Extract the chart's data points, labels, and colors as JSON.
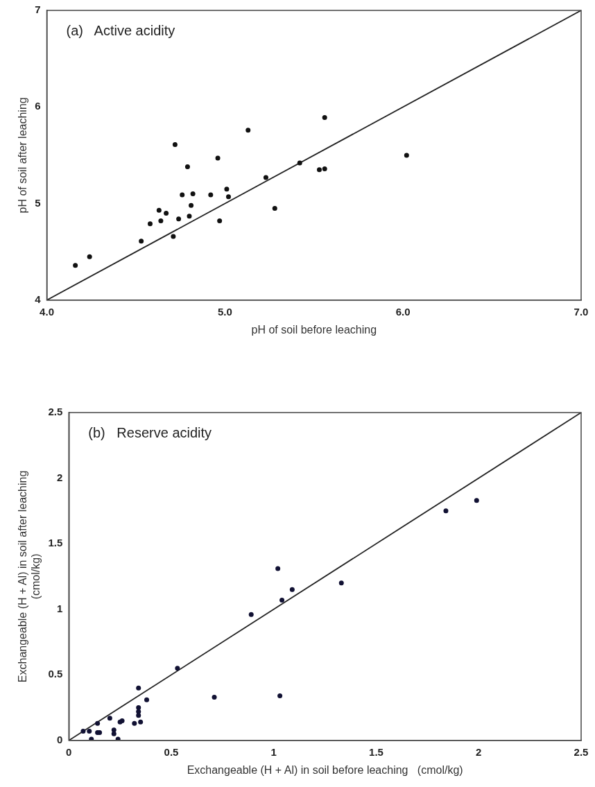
{
  "chart_data": [
    {
      "type": "scatter",
      "annotations": [
        "(a)   Active acidity"
      ],
      "xlabel": "pH of soil before leaching",
      "ylabel": "pH of soil after leaching",
      "marker": "circle",
      "grid": false,
      "xlim": [
        4,
        7
      ],
      "ylim": [
        4,
        7
      ],
      "xticks": [
        {
          "value": 4,
          "label": "4.0"
        },
        {
          "value": 5,
          "label": "5.0"
        },
        {
          "value": 6,
          "label": "6.0"
        },
        {
          "value": 7,
          "label": "7.0"
        }
      ],
      "yticks": [
        4,
        5,
        6,
        7
      ],
      "series": [
        {
          "color": "#111111",
          "x": [
            4.16,
            4.24,
            4.53,
            4.58,
            4.64,
            4.63,
            4.67,
            4.71,
            4.72,
            4.74,
            4.76,
            4.79,
            4.8,
            4.81,
            4.82,
            4.92,
            4.96,
            4.97,
            5.01,
            5.02,
            5.13,
            5.23,
            5.28,
            5.42,
            5.53,
            5.56,
            5.56,
            6.02
          ],
          "values": [
            4.36,
            4.45,
            4.61,
            4.79,
            4.82,
            4.93,
            4.9,
            4.66,
            5.61,
            4.84,
            5.09,
            5.38,
            4.87,
            4.98,
            5.1,
            5.09,
            5.47,
            4.82,
            5.15,
            5.07,
            5.76,
            5.27,
            4.95,
            5.42,
            5.35,
            5.36,
            5.89,
            5.5
          ]
        },
        {
          "type": "line",
          "color": "#222222",
          "marker": "none",
          "x": [
            4,
            7
          ],
          "values": [
            4,
            7
          ]
        }
      ]
    },
    {
      "type": "scatter",
      "annotations": [
        "(b)   Reserve acidity"
      ],
      "xlabel": "Exchangeable (H + Al) in soil before leaching   (cmol/kg)",
      "ylabel": "Exchangeable (H + Al) in soil after leaching\n(cmol/kg)",
      "marker": "circle",
      "grid": false,
      "xlim": [
        0,
        2.5
      ],
      "ylim": [
        0,
        2.5
      ],
      "xticks": [
        0,
        0.5,
        1,
        1.5,
        2,
        2.5
      ],
      "yticks": [
        0,
        0.5,
        1,
        1.5,
        2,
        2.5
      ],
      "series": [
        {
          "color": "#111133",
          "x": [
            1.99,
            1.84,
            1.02,
            1.09,
            1.33,
            1.04,
            0.89,
            0.53,
            0.71,
            1.03,
            0.34,
            0.38,
            0.34,
            0.34,
            0.34,
            0.35,
            0.32,
            0.2,
            0.14,
            0.07,
            0.1,
            0.14,
            0.15,
            0.11,
            0.22,
            0.22,
            0.24,
            0.25,
            0.26
          ],
          "values": [
            1.83,
            1.75,
            1.31,
            1.15,
            1.2,
            1.07,
            0.96,
            0.55,
            0.33,
            0.34,
            0.4,
            0.31,
            0.25,
            0.22,
            0.19,
            0.14,
            0.13,
            0.17,
            0.13,
            0.07,
            0.07,
            0.06,
            0.06,
            0.01,
            0.08,
            0.05,
            0.01,
            0.14,
            0.15
          ]
        },
        {
          "type": "line",
          "color": "#222222",
          "marker": "none",
          "x": [
            0,
            2.5
          ],
          "values": [
            0,
            2.5
          ]
        }
      ]
    }
  ]
}
